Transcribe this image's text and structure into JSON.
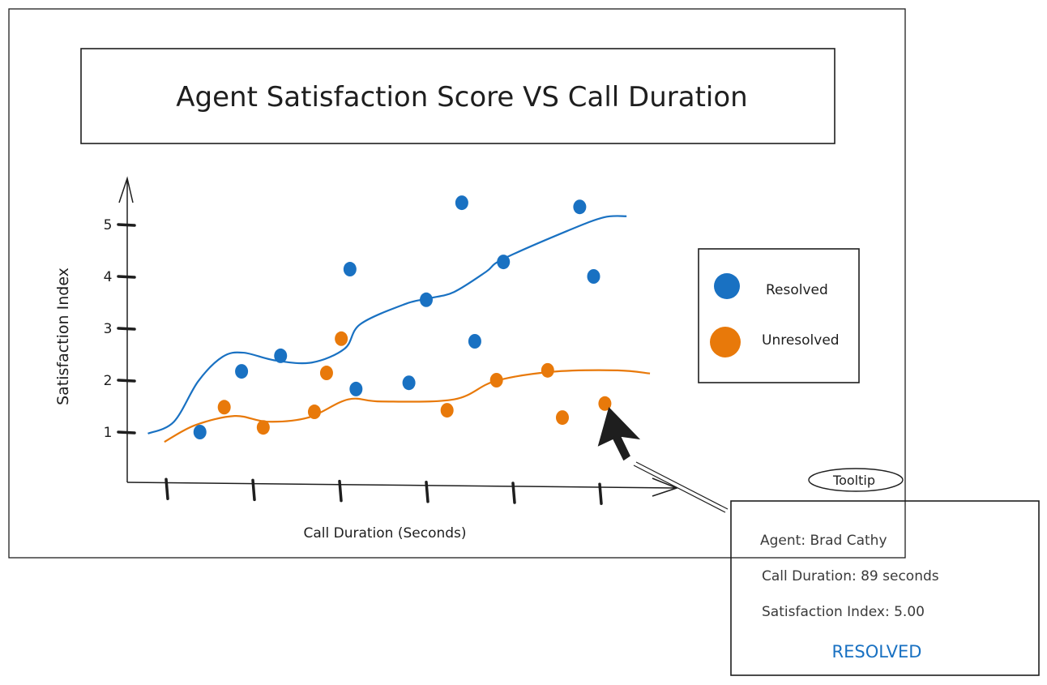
{
  "chart_data": {
    "type": "scatter",
    "title": "Agent Satisfaction Score VS Call Duration",
    "xlabel": "Call Duration (Seconds)",
    "ylabel": "Satisfaction Index",
    "y_ticks": [
      "1",
      "2",
      "3",
      "4",
      "5"
    ],
    "x_tick_count": 6,
    "xlim": [
      0.55,
      6.9
    ],
    "ylim": [
      0,
      5.9
    ],
    "grid": false,
    "legend_position": "right",
    "series": [
      {
        "name": "Resolved",
        "color": "#1971c2",
        "points": [
          [
            1.39,
            1.0
          ],
          [
            1.87,
            2.17
          ],
          [
            2.32,
            2.47
          ],
          [
            3.12,
            4.14
          ],
          [
            3.19,
            1.83
          ],
          [
            3.8,
            1.95
          ],
          [
            4.0,
            3.55
          ],
          [
            4.41,
            5.42
          ],
          [
            4.56,
            2.75
          ],
          [
            4.89,
            4.28
          ],
          [
            5.77,
            5.34
          ],
          [
            5.93,
            4.0
          ]
        ],
        "trend": [
          [
            0.79,
            0.97
          ],
          [
            1.09,
            1.2
          ],
          [
            1.37,
            1.98
          ],
          [
            1.65,
            2.45
          ],
          [
            1.89,
            2.53
          ],
          [
            2.26,
            2.38
          ],
          [
            2.68,
            2.34
          ],
          [
            3.06,
            2.61
          ],
          [
            3.24,
            3.08
          ],
          [
            3.76,
            3.47
          ],
          [
            4.04,
            3.58
          ],
          [
            4.32,
            3.7
          ],
          [
            4.69,
            4.09
          ],
          [
            4.88,
            4.33
          ],
          [
            5.63,
            4.88
          ],
          [
            6.05,
            5.14
          ],
          [
            6.31,
            5.16
          ]
        ]
      },
      {
        "name": "Unresolved",
        "color": "#e8790a",
        "points": [
          [
            1.67,
            1.48
          ],
          [
            2.12,
            1.09
          ],
          [
            2.71,
            1.39
          ],
          [
            2.85,
            2.14
          ],
          [
            3.02,
            2.8
          ],
          [
            4.24,
            1.42
          ],
          [
            4.81,
            2.0
          ],
          [
            5.4,
            2.19
          ],
          [
            5.57,
            1.28
          ],
          [
            6.06,
            1.55
          ]
        ],
        "trend": [
          [
            0.98,
            0.81
          ],
          [
            1.33,
            1.13
          ],
          [
            1.79,
            1.31
          ],
          [
            2.17,
            1.2
          ],
          [
            2.64,
            1.28
          ],
          [
            3.1,
            1.63
          ],
          [
            3.48,
            1.59
          ],
          [
            4.32,
            1.63
          ],
          [
            4.79,
            1.98
          ],
          [
            5.44,
            2.16
          ],
          [
            6.19,
            2.19
          ],
          [
            6.58,
            2.13
          ]
        ]
      }
    ]
  },
  "legend": {
    "resolved": "Resolved",
    "unresolved": "Unresolved"
  },
  "tooltip": {
    "badge": "Tooltip",
    "agent": "Agent: Brad Cathy",
    "duration": "Call Duration: 89 seconds",
    "satisfaction": "Satisfaction Index: 5.00",
    "status": "RESOLVED",
    "status_color": "#1971c2"
  }
}
